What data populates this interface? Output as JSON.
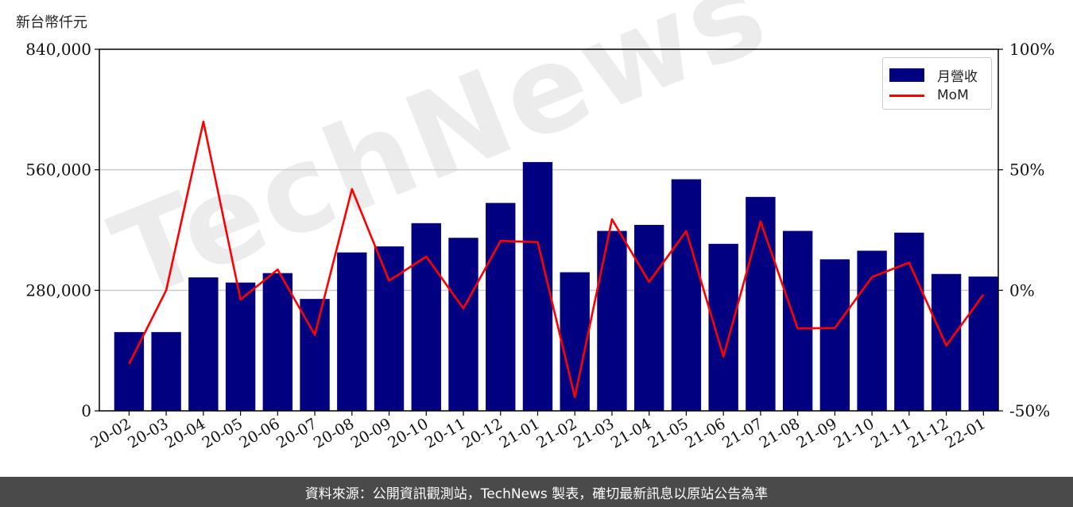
{
  "unit_label": "新台幣仟元",
  "footer_text": "資料來源：公開資訊觀測站，TechNews 製表，確切最新訊息以原站公告為準",
  "watermark": "TechNews",
  "colors": {
    "bar": "#000080",
    "line": "#ff0000",
    "grid": "#cccccc",
    "axis": "#000000"
  },
  "chart_data": {
    "type": "bar",
    "title": "",
    "xlabel": "",
    "ylabel": "新台幣仟元",
    "categories": [
      "20-02",
      "20-03",
      "20-04",
      "20-05",
      "20-06",
      "20-07",
      "20-08",
      "20-09",
      "20-10",
      "20-11",
      "20-12",
      "21-01",
      "21-02",
      "21-03",
      "21-04",
      "21-05",
      "21-06",
      "21-07",
      "21-08",
      "21-09",
      "21-10",
      "21-11",
      "21-12",
      "22-01"
    ],
    "series": [
      {
        "name": "月營收",
        "type": "bar",
        "axis": "left",
        "values": [
          183000,
          183000,
          310000,
          298000,
          320000,
          260000,
          368000,
          382000,
          436000,
          402000,
          483000,
          578000,
          322000,
          418000,
          432000,
          538000,
          388000,
          497000,
          418000,
          352000,
          372000,
          414000,
          318000,
          312000
        ]
      },
      {
        "name": "MoM",
        "type": "line",
        "axis": "right",
        "values": [
          -30.5,
          0,
          70,
          -3.8,
          8.6,
          -18.5,
          42,
          4,
          14,
          -7.5,
          20.5,
          20,
          -44.3,
          29.5,
          3.5,
          24.6,
          -27.5,
          28.6,
          -15.8,
          -15.6,
          5.5,
          11.5,
          -22.9,
          -1.8
        ]
      }
    ],
    "ylim": [
      0,
      840000
    ],
    "yticks": [
      "0",
      "280,000",
      "560,000",
      "840,000"
    ],
    "y2lim": [
      -50,
      100
    ],
    "y2ticks": [
      "-50%",
      "0%",
      "50%",
      "100%"
    ],
    "grid": "horizontal",
    "legend_position": "top-right"
  }
}
